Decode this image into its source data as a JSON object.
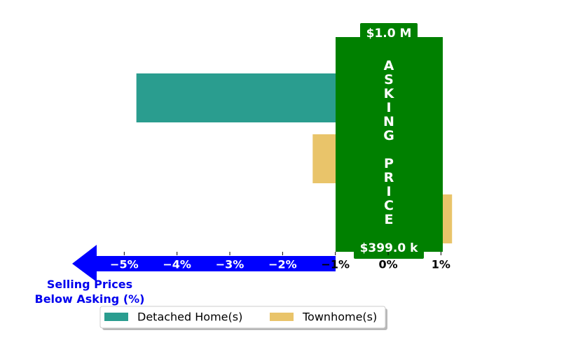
{
  "chart_data": {
    "type": "bar",
    "orientation": "horizontal",
    "categories": [
      null,
      null,
      null
    ],
    "series": [
      {
        "name": "Detached Home(s)",
        "color": "#2a9d8f",
        "values": [
          -4.77,
          null,
          null
        ]
      },
      {
        "name": "Townhome(s)",
        "color": "#e9c46a",
        "values": [
          null,
          -1.43,
          1.21
        ]
      }
    ],
    "xlim": [
      -6,
      1.3
    ],
    "xticks": [
      {
        "value": -5,
        "label": "−5%"
      },
      {
        "value": -4,
        "label": "−4%"
      },
      {
        "value": -3,
        "label": "−3%"
      },
      {
        "value": -2,
        "label": "−2%"
      },
      {
        "value": -1,
        "label": "−1%"
      },
      {
        "value": 0,
        "label": "0%"
      },
      {
        "value": 1,
        "label": "1%"
      }
    ],
    "xlabel": "Selling Prices\nBelow Asking (%)",
    "annotations": {
      "top": "$1.0 M",
      "middle": "ASKING PRICE",
      "bottom": "$399.0 k"
    },
    "legend": "lower center"
  }
}
